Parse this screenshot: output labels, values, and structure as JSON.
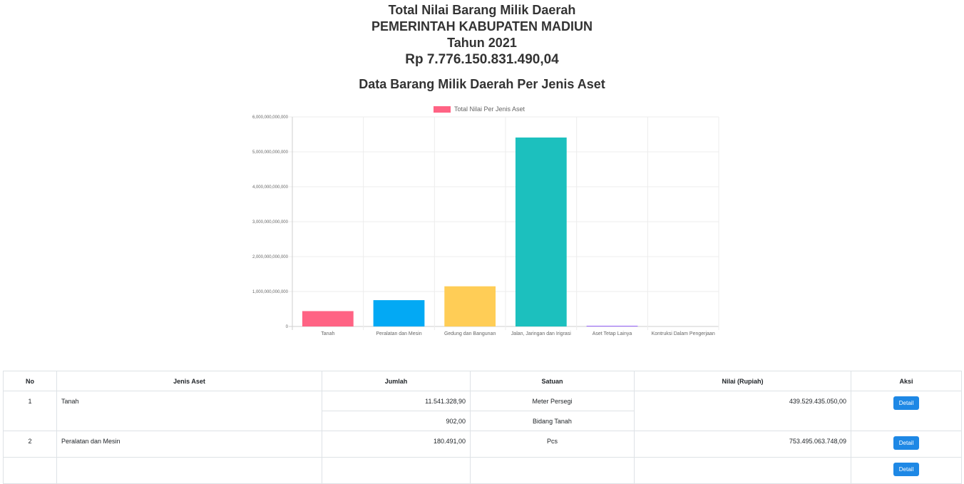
{
  "header": {
    "line1": "Total Nilai Barang Milik Daerah",
    "line2": "PEMERINTAH KABUPATEN MADIUN",
    "line3": "Tahun 2021",
    "total": "Rp 7.776.150.831.490,04"
  },
  "chart_title": "Data Barang Milik Daerah Per Jenis Aset",
  "chart_data": {
    "type": "bar",
    "title": "Data Barang Milik Daerah Per Jenis Aset",
    "categories": [
      "Tanah",
      "Peralatan dan Mesin",
      "Gedung dan Bangunan",
      "Jalan, Jaringan dan Irigrasi",
      "Aset Tetap Lainya",
      "Kontruksi Dalam Pengerjaan"
    ],
    "series": [
      {
        "name": "Total Nilai Per Jenis Aset",
        "values": [
          439529435050,
          753495063748,
          1150000000000,
          5410000000000,
          20000000000,
          0
        ]
      }
    ],
    "colors": [
      "#ff6384",
      "#03a9f4",
      "#ffcd56",
      "#1cc0be",
      "#9966ff",
      "#c9cbcf"
    ],
    "legend_color": "#ff6384",
    "ylim": [
      0,
      6000000000000
    ],
    "yticks": [
      "0",
      "1,000,000,000,000",
      "2,000,000,000,000",
      "3,000,000,000,000",
      "4,000,000,000,000",
      "5,000,000,000,000",
      "6,000,000,000,000"
    ],
    "grid": true,
    "legend": "top"
  },
  "table": {
    "headers": {
      "no": "No",
      "jenis": "Jenis Aset",
      "jumlah": "Jumlah",
      "satuan": "Satuan",
      "nilai": "Nilai (Rupiah)",
      "aksi": "Aksi"
    },
    "rows": [
      {
        "no": "1",
        "jenis": "Tanah",
        "jumlah1": "11.541.328,90",
        "satuan1": "Meter Persegi",
        "jumlah2": "902,00",
        "satuan2": "Bidang Tanah",
        "nilai": "439.529.435.050,00",
        "aksi": "Detail"
      },
      {
        "no": "2",
        "jenis": "Peralatan dan Mesin",
        "jumlah": "180.491,00",
        "satuan": "Pcs",
        "nilai": "753.495.063.748,09",
        "aksi": "Detail"
      },
      {
        "aksi": "Detail"
      }
    ]
  }
}
